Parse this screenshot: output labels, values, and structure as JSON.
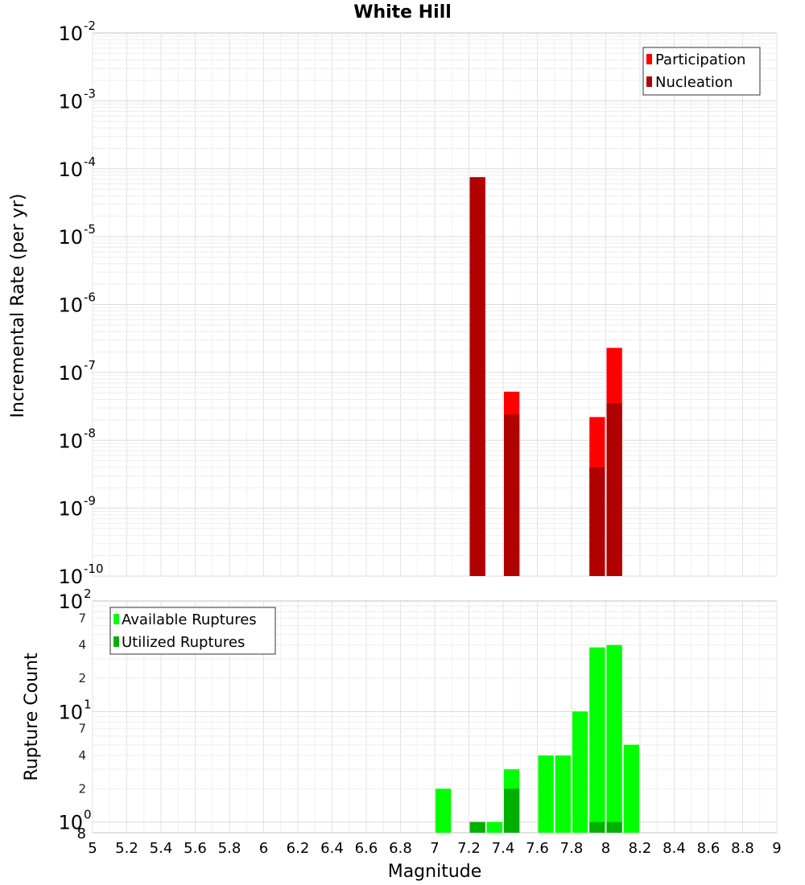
{
  "chart_data": [
    {
      "type": "bar",
      "title": "White Hill",
      "ylabel": "Incremental Rate (per yr)",
      "xlabel": "",
      "yscale": "log",
      "ylim": [
        1e-10,
        0.01
      ],
      "xlim": [
        5,
        9
      ],
      "y_tick_exponents": [
        "-10",
        "-9",
        "-8",
        "-7",
        "-6",
        "-5",
        "-4",
        "-3",
        "-2"
      ],
      "y_tick_base": "10",
      "grid": true,
      "legend_position": "top-right",
      "series": [
        {
          "name": "Participation",
          "color": "#ff0000",
          "x": [
            7.25,
            7.45,
            7.95,
            8.05
          ],
          "values": [
            7.5e-05,
            5.2e-08,
            2.2e-08,
            2.3e-07
          ]
        },
        {
          "name": "Nucleation",
          "color": "#b00000",
          "x": [
            7.25,
            7.45,
            7.95,
            8.05
          ],
          "values": [
            7.5e-05,
            2.4e-08,
            4e-09,
            3.5e-08
          ]
        }
      ]
    },
    {
      "type": "bar",
      "title": "",
      "ylabel": "Rupture Count",
      "xlabel": "Magnitude",
      "yscale": "log",
      "ylim": [
        0.8,
        100
      ],
      "xlim": [
        5,
        9
      ],
      "x_ticks": [
        "5",
        "5.2",
        "5.4",
        "5.6",
        "5.8",
        "6",
        "6.2",
        "6.4",
        "6.6",
        "6.8",
        "7",
        "7.2",
        "7.4",
        "7.6",
        "7.8",
        "8",
        "8.2",
        "8.4",
        "8.6",
        "8.8",
        "9"
      ],
      "y_major_ticks": [
        {
          "base": "10",
          "exp": "0"
        },
        {
          "base": "10",
          "exp": "1"
        },
        {
          "base": "10",
          "exp": "2"
        }
      ],
      "y_minor_ticks": [
        "8",
        "2",
        "4",
        "7",
        "2",
        "4",
        "7"
      ],
      "grid": true,
      "legend_position": "top-left",
      "series": [
        {
          "name": "Available Ruptures",
          "color": "#00ff00",
          "x": [
            7.05,
            7.25,
            7.35,
            7.45,
            7.65,
            7.75,
            7.85,
            7.95,
            8.05,
            8.15
          ],
          "values": [
            2,
            1,
            1,
            3,
            4,
            4,
            10,
            38,
            40,
            5
          ]
        },
        {
          "name": "Utilized Ruptures",
          "color": "#00b000",
          "x": [
            7.25,
            7.45,
            7.95,
            8.05
          ],
          "values": [
            1,
            2,
            1,
            1
          ]
        }
      ]
    }
  ]
}
